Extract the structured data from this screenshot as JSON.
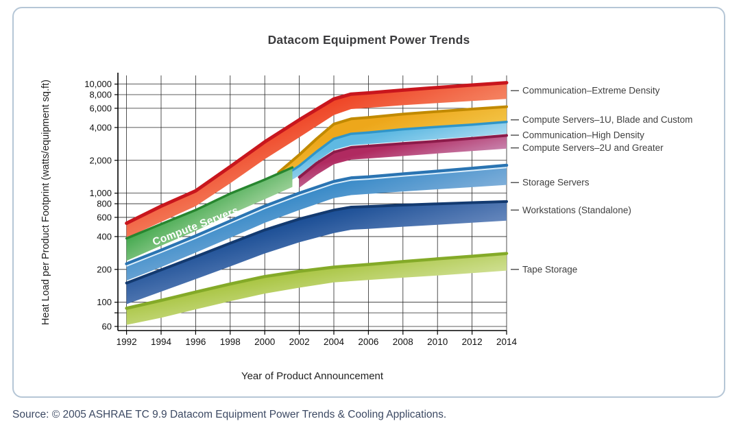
{
  "chart_data": {
    "type": "area",
    "title": "Datacom Equipment Power Trends",
    "xlabel": "Year of Product Announcement",
    "ylabel": "Heat Load per Product Footprint (watts/equipment sq.ft)",
    "source": "Source: © 2005 ASHRAE TC 9.9 Datacom Equipment Power Trends & Cooling Applications.",
    "y_scale": "log",
    "grid": true,
    "legend_position": "right",
    "x_domain": [
      1991.5,
      2014
    ],
    "y_domain": [
      55,
      12000
    ],
    "x_ticks": [
      1992,
      1994,
      1996,
      1998,
      2000,
      2002,
      2004,
      2006,
      2008,
      2010,
      2012,
      2014
    ],
    "y_ticks": [
      {
        "v": 10000,
        "label": "10,000"
      },
      {
        "v": 8000,
        "label": "8,000"
      },
      {
        "v": 6000,
        "label": "6,000"
      },
      {
        "v": 4000,
        "label": "4,000"
      },
      {
        "v": 2000,
        "label": "2,000"
      },
      {
        "v": 1000,
        "label": "1,000"
      },
      {
        "v": 800,
        "label": "800"
      },
      {
        "v": 600,
        "label": "600"
      },
      {
        "v": 400,
        "label": "400"
      },
      {
        "v": 200,
        "label": "200"
      },
      {
        "v": 100,
        "label": "100"
      },
      {
        "v": 80,
        "label": ""
      },
      {
        "v": 60,
        "label": "60"
      }
    ],
    "inline_label": {
      "text": "Compute Servers",
      "x": 1993.6,
      "v": 330,
      "angle": -21
    },
    "bands": [
      {
        "id": "comm-extreme",
        "label": "Communication–Extreme Density",
        "anchor": 8700,
        "fill_from": "#ee4223",
        "fill_to": "#fbc9a5",
        "edge": "#c8161d",
        "edge_w": 5,
        "top": [
          [
            1992,
            530
          ],
          [
            1994,
            760
          ],
          [
            1996,
            1050
          ],
          [
            1998,
            1750
          ],
          [
            2000,
            2950
          ],
          [
            2002,
            4700
          ],
          [
            2004,
            7300
          ],
          [
            2005,
            8100
          ],
          [
            2006,
            8300
          ],
          [
            2008,
            8800
          ],
          [
            2010,
            9300
          ],
          [
            2012,
            9800
          ],
          [
            2014,
            10300
          ]
        ],
        "bottom": [
          [
            1992,
            390
          ],
          [
            1994,
            545
          ],
          [
            1996,
            760
          ],
          [
            1998,
            1230
          ],
          [
            2000,
            2050
          ],
          [
            2002,
            3250
          ],
          [
            2004,
            5200
          ],
          [
            2005,
            5900
          ],
          [
            2006,
            6050
          ],
          [
            2008,
            6400
          ],
          [
            2010,
            6700
          ],
          [
            2012,
            7000
          ],
          [
            2014,
            7300
          ]
        ]
      },
      {
        "id": "compute-1u",
        "label": "Compute Servers–1U, Blade and Custom",
        "anchor": 4700,
        "fill_from": "#eda71b",
        "fill_to": "#f6d763",
        "edge": "#c18a00",
        "edge_w": 4,
        "top": [
          [
            2000.8,
            1550
          ],
          [
            2002,
            2250
          ],
          [
            2003,
            3150
          ],
          [
            2004,
            4300
          ],
          [
            2005,
            4800
          ],
          [
            2006,
            4950
          ],
          [
            2008,
            5300
          ],
          [
            2010,
            5600
          ],
          [
            2012,
            5900
          ],
          [
            2014,
            6200
          ]
        ],
        "bottom": [
          [
            2000.8,
            1280
          ],
          [
            2002,
            1780
          ],
          [
            2003,
            2400
          ],
          [
            2004,
            3150
          ],
          [
            2005,
            3500
          ],
          [
            2006,
            3600
          ],
          [
            2008,
            3850
          ],
          [
            2010,
            4050
          ],
          [
            2012,
            4250
          ],
          [
            2014,
            4500
          ]
        ]
      },
      {
        "id": "comm-high",
        "label": "Communication–High Density",
        "anchor": 3400,
        "fill_from": "#5fb9e2",
        "fill_to": "#daf0fb",
        "edge": "#2f95c8",
        "edge_w": 3.5,
        "top": [
          [
            2001.6,
            1620
          ],
          [
            2002,
            1780
          ],
          [
            2003,
            2400
          ],
          [
            2004,
            3150
          ],
          [
            2005,
            3500
          ],
          [
            2006,
            3600
          ],
          [
            2008,
            3850
          ],
          [
            2010,
            4050
          ],
          [
            2012,
            4250
          ],
          [
            2014,
            4500
          ]
        ],
        "bottom": [
          [
            2001.6,
            1330
          ],
          [
            2002,
            1450
          ],
          [
            2003,
            1950
          ],
          [
            2004,
            2500
          ],
          [
            2005,
            2750
          ],
          [
            2006,
            2820
          ],
          [
            2008,
            2980
          ],
          [
            2010,
            3130
          ],
          [
            2012,
            3300
          ],
          [
            2014,
            3500
          ]
        ]
      },
      {
        "id": "compute-2u",
        "label": "Compute Servers–2U and Greater",
        "anchor": 2600,
        "fill_from": "#b02a60",
        "fill_to": "#d5b5d8",
        "edge": "#8c1b4a",
        "edge_w": 4,
        "top": [
          [
            2002,
            1400
          ],
          [
            2003,
            1880
          ],
          [
            2004,
            2380
          ],
          [
            2005,
            2630
          ],
          [
            2006,
            2700
          ],
          [
            2008,
            2850
          ],
          [
            2010,
            3000
          ],
          [
            2012,
            3180
          ],
          [
            2014,
            3380
          ]
        ],
        "bottom": [
          [
            2002,
            1120
          ],
          [
            2003,
            1470
          ],
          [
            2004,
            1840
          ],
          [
            2005,
            2030
          ],
          [
            2006,
            2080
          ],
          [
            2008,
            2190
          ],
          [
            2010,
            2310
          ],
          [
            2012,
            2430
          ],
          [
            2014,
            2560
          ]
        ]
      },
      {
        "id": "compute-servers",
        "label": "",
        "anchor": 0,
        "fill_from": "#2f9f3d",
        "fill_to": "#e2f0d2",
        "edge": "#27862f",
        "edge_w": 3.5,
        "top": [
          [
            1992,
            385
          ],
          [
            1994,
            520
          ],
          [
            1996,
            700
          ],
          [
            1998,
            990
          ],
          [
            2000,
            1330
          ],
          [
            2001.6,
            1720
          ]
        ],
        "bottom": [
          [
            1992,
            240
          ],
          [
            1994,
            330
          ],
          [
            1996,
            450
          ],
          [
            1998,
            640
          ],
          [
            2000,
            880
          ],
          [
            2001.6,
            1140
          ]
        ]
      },
      {
        "id": "storage",
        "label": "Storage Servers",
        "anchor": 1250,
        "fill_from": "#2f85c5",
        "fill_to": "#bfd0ea",
        "edge": "#2a74b2",
        "edge_w": 4.5,
        "edge2": "#ddeffb",
        "edge2_w": 2,
        "top": [
          [
            1992,
            225
          ],
          [
            1994,
            300
          ],
          [
            1996,
            405
          ],
          [
            1998,
            555
          ],
          [
            2000,
            760
          ],
          [
            2002,
            1000
          ],
          [
            2004,
            1280
          ],
          [
            2005,
            1380
          ],
          [
            2006,
            1410
          ],
          [
            2008,
            1500
          ],
          [
            2010,
            1590
          ],
          [
            2012,
            1690
          ],
          [
            2014,
            1800
          ]
        ],
        "bottom": [
          [
            1992,
            158
          ],
          [
            1994,
            210
          ],
          [
            1996,
            285
          ],
          [
            1998,
            390
          ],
          [
            2000,
            535
          ],
          [
            2002,
            700
          ],
          [
            2004,
            900
          ],
          [
            2005,
            960
          ],
          [
            2006,
            985
          ],
          [
            2008,
            1035
          ],
          [
            2010,
            1085
          ],
          [
            2012,
            1135
          ],
          [
            2014,
            1190
          ]
        ]
      },
      {
        "id": "workstations",
        "label": "Workstations (Standalone)",
        "anchor": 700,
        "fill_from": "#1c4f96",
        "fill_to": "#9db1d9",
        "edge": "#133a70",
        "edge_w": 4,
        "top": [
          [
            1992,
            150
          ],
          [
            1994,
            198
          ],
          [
            1996,
            262
          ],
          [
            1998,
            348
          ],
          [
            2000,
            460
          ],
          [
            2002,
            580
          ],
          [
            2004,
            700
          ],
          [
            2005,
            745
          ],
          [
            2006,
            755
          ],
          [
            2008,
            778
          ],
          [
            2010,
            798
          ],
          [
            2012,
            818
          ],
          [
            2014,
            838
          ]
        ],
        "bottom": [
          [
            1992,
            96
          ],
          [
            1994,
            125
          ],
          [
            1996,
            163
          ],
          [
            1998,
            213
          ],
          [
            2000,
            280
          ],
          [
            2002,
            355
          ],
          [
            2004,
            430
          ],
          [
            2005,
            462
          ],
          [
            2006,
            470
          ],
          [
            2008,
            492
          ],
          [
            2010,
            513
          ],
          [
            2012,
            536
          ],
          [
            2014,
            560
          ]
        ]
      },
      {
        "id": "tape",
        "label": "Tape Storage",
        "anchor": 200,
        "fill_from": "#a5c23a",
        "fill_to": "#e7f0c5",
        "edge": "#84aa28",
        "edge_w": 4.5,
        "top": [
          [
            1992,
            88
          ],
          [
            1994,
            104
          ],
          [
            1996,
            124
          ],
          [
            1998,
            147
          ],
          [
            2000,
            172
          ],
          [
            2002,
            192
          ],
          [
            2004,
            210
          ],
          [
            2006,
            222
          ],
          [
            2008,
            236
          ],
          [
            2010,
            250
          ],
          [
            2012,
            264
          ],
          [
            2014,
            280
          ]
        ],
        "bottom": [
          [
            1992,
            62
          ],
          [
            1994,
            72
          ],
          [
            1996,
            86
          ],
          [
            1998,
            102
          ],
          [
            2000,
            120
          ],
          [
            2002,
            136
          ],
          [
            2004,
            152
          ],
          [
            2006,
            160
          ],
          [
            2008,
            168
          ],
          [
            2010,
            176
          ],
          [
            2012,
            185
          ],
          [
            2014,
            195
          ]
        ]
      }
    ]
  }
}
